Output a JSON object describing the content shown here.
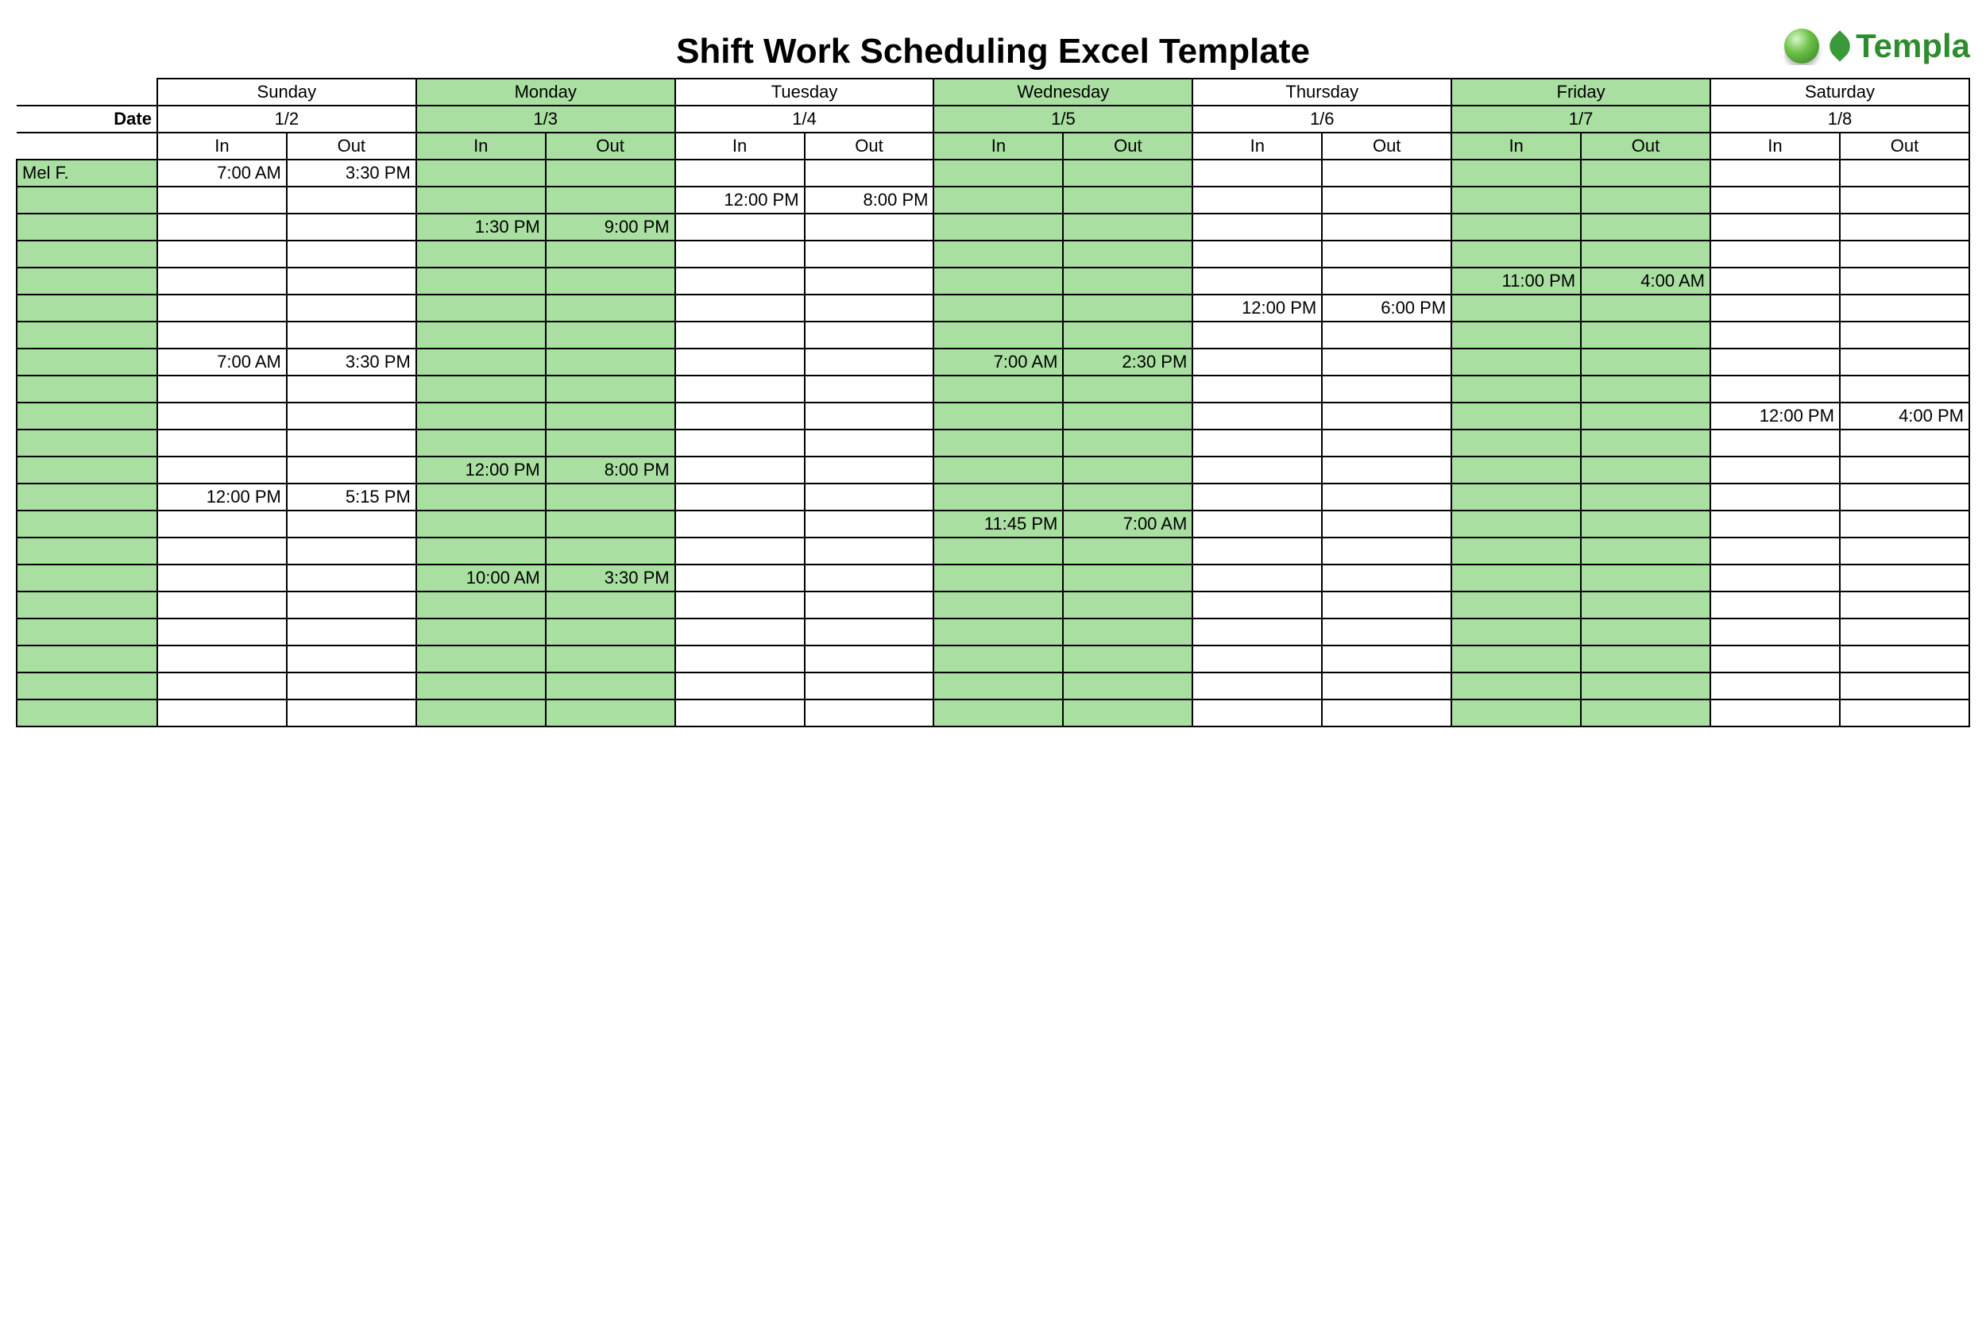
{
  "title": "Shift Work Scheduling Excel Template",
  "logo_text": "Templa",
  "colors": {
    "green": "#a9dfa1",
    "white": "#ffffff",
    "border": "#000000",
    "logo_green": "#2e8b2e"
  },
  "date_label": "Date",
  "in_label": "In",
  "out_label": "Out",
  "days": [
    {
      "name": "Sunday",
      "date": "1/2",
      "green": false
    },
    {
      "name": "Monday",
      "date": "1/3",
      "green": true
    },
    {
      "name": "Tuesday",
      "date": "1/4",
      "green": false
    },
    {
      "name": "Wednesday",
      "date": "1/5",
      "green": true
    },
    {
      "name": "Thursday",
      "date": "1/6",
      "green": false
    },
    {
      "name": "Friday",
      "date": "1/7",
      "green": true
    },
    {
      "name": "Saturday",
      "date": "1/8",
      "green": false
    }
  ],
  "rows": [
    {
      "name": "Mel F.",
      "shifts": [
        [
          "7:00 AM",
          "3:30 PM"
        ],
        [
          "",
          ""
        ],
        [
          "",
          ""
        ],
        [
          "",
          ""
        ],
        [
          "",
          ""
        ],
        [
          "",
          ""
        ],
        [
          "",
          ""
        ]
      ]
    },
    {
      "name": "",
      "shifts": [
        [
          "",
          ""
        ],
        [
          "",
          ""
        ],
        [
          "12:00 PM",
          "8:00 PM"
        ],
        [
          "",
          ""
        ],
        [
          "",
          ""
        ],
        [
          "",
          ""
        ],
        [
          "",
          ""
        ]
      ]
    },
    {
      "name": "",
      "shifts": [
        [
          "",
          ""
        ],
        [
          "1:30 PM",
          "9:00 PM"
        ],
        [
          "",
          ""
        ],
        [
          "",
          ""
        ],
        [
          "",
          ""
        ],
        [
          "",
          ""
        ],
        [
          "",
          ""
        ]
      ]
    },
    {
      "name": "",
      "shifts": [
        [
          "",
          ""
        ],
        [
          "",
          ""
        ],
        [
          "",
          ""
        ],
        [
          "",
          ""
        ],
        [
          "",
          ""
        ],
        [
          "",
          ""
        ],
        [
          "",
          ""
        ]
      ]
    },
    {
      "name": "",
      "shifts": [
        [
          "",
          ""
        ],
        [
          "",
          ""
        ],
        [
          "",
          ""
        ],
        [
          "",
          ""
        ],
        [
          "",
          ""
        ],
        [
          "11:00 PM",
          "4:00 AM"
        ],
        [
          "",
          ""
        ]
      ]
    },
    {
      "name": "",
      "shifts": [
        [
          "",
          ""
        ],
        [
          "",
          ""
        ],
        [
          "",
          ""
        ],
        [
          "",
          ""
        ],
        [
          "12:00 PM",
          "6:00 PM"
        ],
        [
          "",
          ""
        ],
        [
          "",
          ""
        ]
      ]
    },
    {
      "name": "",
      "shifts": [
        [
          "",
          ""
        ],
        [
          "",
          ""
        ],
        [
          "",
          ""
        ],
        [
          "",
          ""
        ],
        [
          "",
          ""
        ],
        [
          "",
          ""
        ],
        [
          "",
          ""
        ]
      ]
    },
    {
      "name": "",
      "shifts": [
        [
          "7:00 AM",
          "3:30 PM"
        ],
        [
          "",
          ""
        ],
        [
          "",
          ""
        ],
        [
          "7:00 AM",
          "2:30 PM"
        ],
        [
          "",
          ""
        ],
        [
          "",
          ""
        ],
        [
          "",
          ""
        ]
      ]
    },
    {
      "name": "",
      "shifts": [
        [
          "",
          ""
        ],
        [
          "",
          ""
        ],
        [
          "",
          ""
        ],
        [
          "",
          ""
        ],
        [
          "",
          ""
        ],
        [
          "",
          ""
        ],
        [
          "",
          ""
        ]
      ]
    },
    {
      "name": "",
      "shifts": [
        [
          "",
          ""
        ],
        [
          "",
          ""
        ],
        [
          "",
          ""
        ],
        [
          "",
          ""
        ],
        [
          "",
          ""
        ],
        [
          "",
          ""
        ],
        [
          "12:00 PM",
          "4:00 PM"
        ]
      ]
    },
    {
      "name": "",
      "shifts": [
        [
          "",
          ""
        ],
        [
          "",
          ""
        ],
        [
          "",
          ""
        ],
        [
          "",
          ""
        ],
        [
          "",
          ""
        ],
        [
          "",
          ""
        ],
        [
          "",
          ""
        ]
      ]
    },
    {
      "name": "",
      "shifts": [
        [
          "",
          ""
        ],
        [
          "12:00 PM",
          "8:00 PM"
        ],
        [
          "",
          ""
        ],
        [
          "",
          ""
        ],
        [
          "",
          ""
        ],
        [
          "",
          ""
        ],
        [
          "",
          ""
        ]
      ]
    },
    {
      "name": "",
      "shifts": [
        [
          "12:00 PM",
          "5:15 PM"
        ],
        [
          "",
          ""
        ],
        [
          "",
          ""
        ],
        [
          "",
          ""
        ],
        [
          "",
          ""
        ],
        [
          "",
          ""
        ],
        [
          "",
          ""
        ]
      ]
    },
    {
      "name": "",
      "shifts": [
        [
          "",
          ""
        ],
        [
          "",
          ""
        ],
        [
          "",
          ""
        ],
        [
          "11:45 PM",
          "7:00 AM"
        ],
        [
          "",
          ""
        ],
        [
          "",
          ""
        ],
        [
          "",
          ""
        ]
      ]
    },
    {
      "name": "",
      "shifts": [
        [
          "",
          ""
        ],
        [
          "",
          ""
        ],
        [
          "",
          ""
        ],
        [
          "",
          ""
        ],
        [
          "",
          ""
        ],
        [
          "",
          ""
        ],
        [
          "",
          ""
        ]
      ]
    },
    {
      "name": "",
      "shifts": [
        [
          "",
          ""
        ],
        [
          "10:00 AM",
          "3:30 PM"
        ],
        [
          "",
          ""
        ],
        [
          "",
          ""
        ],
        [
          "",
          ""
        ],
        [
          "",
          ""
        ],
        [
          "",
          ""
        ]
      ]
    },
    {
      "name": "",
      "shifts": [
        [
          "",
          ""
        ],
        [
          "",
          ""
        ],
        [
          "",
          ""
        ],
        [
          "",
          ""
        ],
        [
          "",
          ""
        ],
        [
          "",
          ""
        ],
        [
          "",
          ""
        ]
      ]
    },
    {
      "name": "",
      "shifts": [
        [
          "",
          ""
        ],
        [
          "",
          ""
        ],
        [
          "",
          ""
        ],
        [
          "",
          ""
        ],
        [
          "",
          ""
        ],
        [
          "",
          ""
        ],
        [
          "",
          ""
        ]
      ]
    },
    {
      "name": "",
      "shifts": [
        [
          "",
          ""
        ],
        [
          "",
          ""
        ],
        [
          "",
          ""
        ],
        [
          "",
          ""
        ],
        [
          "",
          ""
        ],
        [
          "",
          ""
        ],
        [
          "",
          ""
        ]
      ]
    },
    {
      "name": "",
      "shifts": [
        [
          "",
          ""
        ],
        [
          "",
          ""
        ],
        [
          "",
          ""
        ],
        [
          "",
          ""
        ],
        [
          "",
          ""
        ],
        [
          "",
          ""
        ],
        [
          "",
          ""
        ]
      ]
    },
    {
      "name": "",
      "shifts": [
        [
          "",
          ""
        ],
        [
          "",
          ""
        ],
        [
          "",
          ""
        ],
        [
          "",
          ""
        ],
        [
          "",
          ""
        ],
        [
          "",
          ""
        ],
        [
          "",
          ""
        ]
      ]
    }
  ]
}
